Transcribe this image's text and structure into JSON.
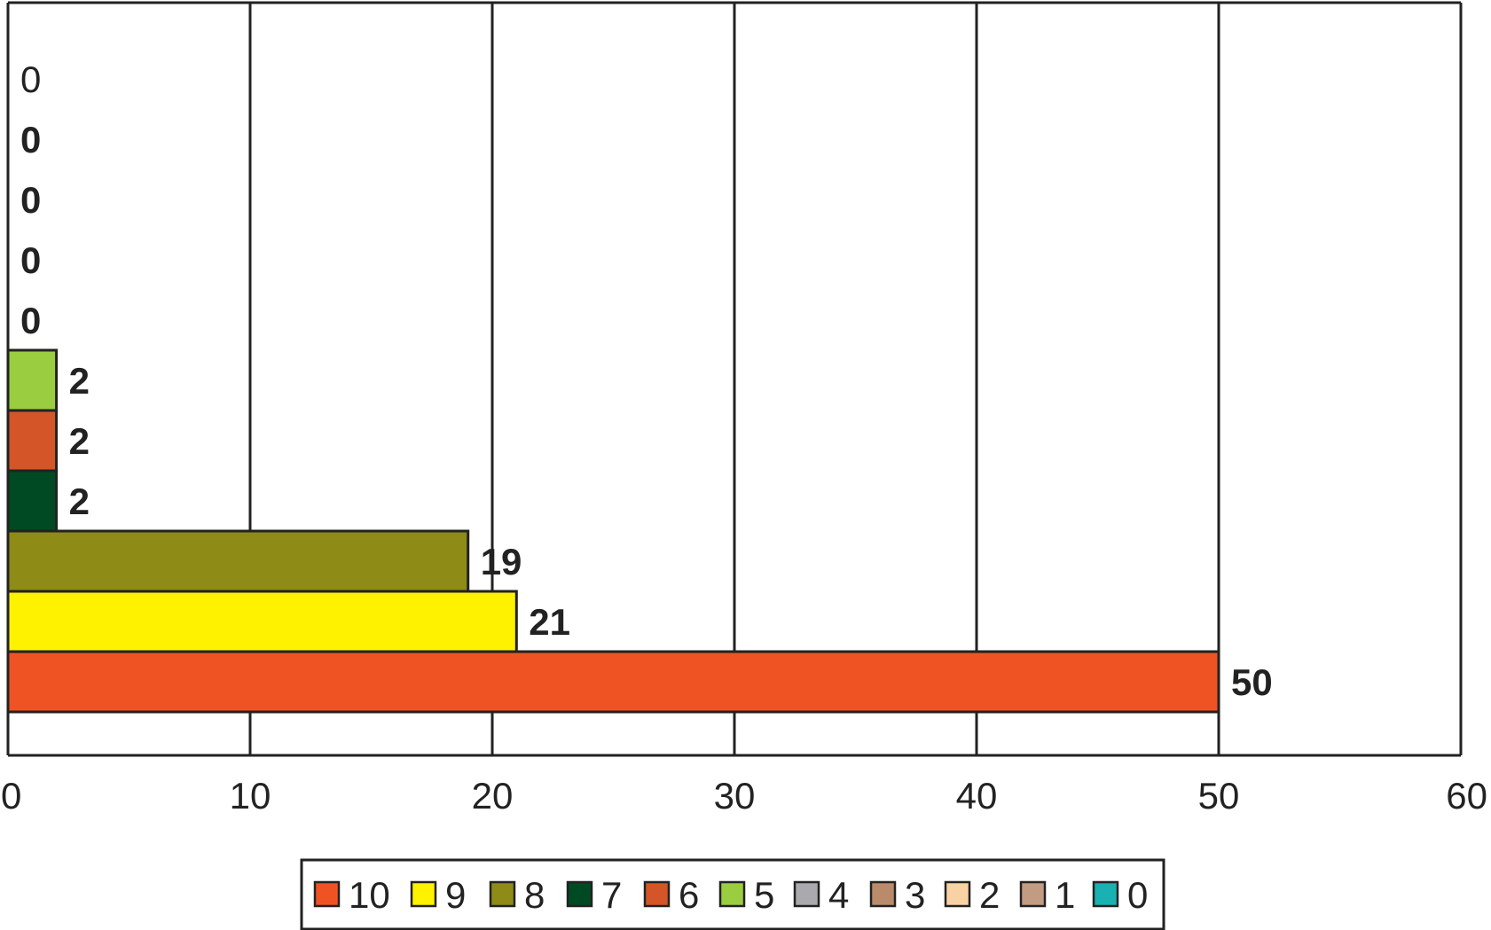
{
  "chart_data": {
    "type": "bar",
    "orientation": "horizontal",
    "title": "",
    "xlabel": "",
    "ylabel": "",
    "xlim": [
      0,
      60
    ],
    "x_ticks": [
      "0",
      "10",
      "20",
      "30",
      "40",
      "50",
      "60"
    ],
    "grid": "vertical lines at each x tick",
    "legend_position": "bottom",
    "categories": [
      "10",
      "9",
      "8",
      "7",
      "6",
      "5",
      "4",
      "3",
      "2",
      "1",
      "0"
    ],
    "values": [
      50,
      21,
      19,
      2,
      2,
      2,
      0,
      0,
      0,
      0,
      0
    ],
    "value_labels": [
      "50",
      "21",
      "19",
      "2",
      "2",
      "2",
      "0",
      "0",
      "0",
      "0",
      "0"
    ],
    "colors": [
      "#f05323",
      "#fff200",
      "#8e8b17",
      "#004a23",
      "#d45528",
      "#9acd3f",
      "#a9a9ae",
      "#b98b6a",
      "#f9d2a4",
      "#c29b83",
      "#19b1b1"
    ]
  }
}
